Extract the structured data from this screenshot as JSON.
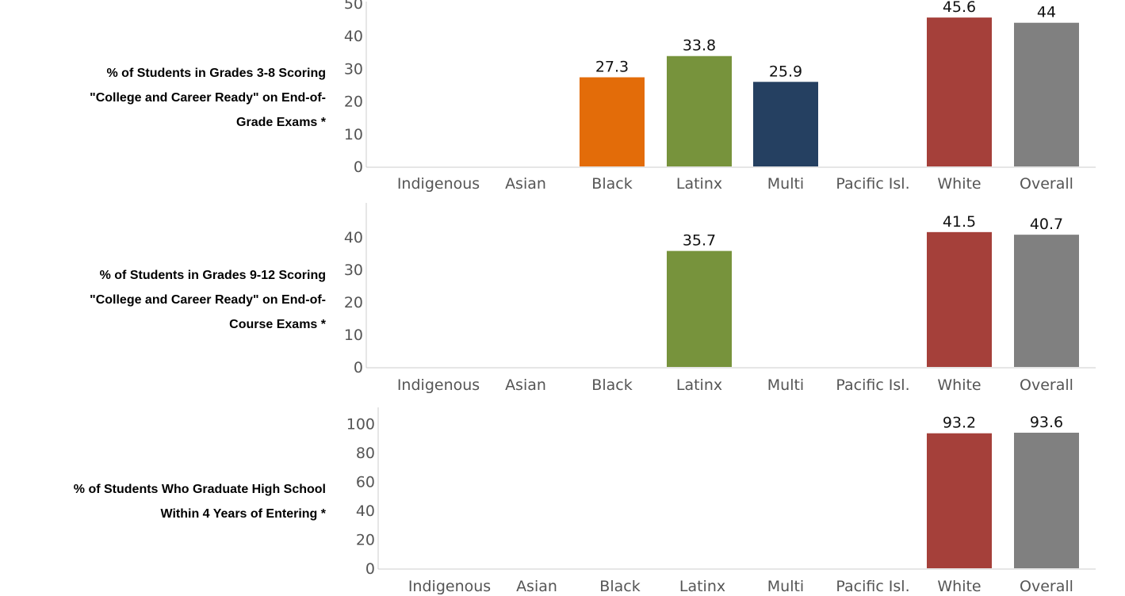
{
  "colors": {
    "Indigenous": "#7f7f7f",
    "Asian": "#7f7f7f",
    "Black": "#e36c09",
    "Latinx": "#77933c",
    "Multi": "#254061",
    "Pacific Isl.": "#7f7f7f",
    "White": "#a5403a",
    "Overall": "#808080",
    "axis": "#cccccc"
  },
  "chart_data": [
    {
      "type": "bar",
      "label_lines": [
        "% of Students in Grades 3-8 Scoring ",
        "\"College and Career Ready\" on End-of-",
        "Grade Exams *"
      ],
      "categories": [
        "Indigenous",
        "Asian",
        "Black",
        "Latinx",
        "Multi",
        "Pacific Isl.",
        "White",
        "Overall"
      ],
      "values": [
        null,
        null,
        27.3,
        33.8,
        25.9,
        null,
        45.6,
        44
      ],
      "value_labels": [
        "",
        "",
        "27.3",
        "33.8",
        "25.9",
        "",
        "45.6",
        "44"
      ],
      "ylim": [
        0,
        50
      ],
      "yticks": [
        0,
        10,
        20,
        30,
        40,
        50
      ]
    },
    {
      "type": "bar",
      "label_lines": [
        "% of Students in Grades 9-12 Scoring ",
        "\"College and Career Ready\" on End-of-",
        "Course Exams *"
      ],
      "categories": [
        "Indigenous",
        "Asian",
        "Black",
        "Latinx",
        "Multi",
        "Pacific Isl.",
        "White",
        "Overall"
      ],
      "values": [
        null,
        null,
        null,
        35.7,
        null,
        null,
        41.5,
        40.7
      ],
      "value_labels": [
        "",
        "",
        "",
        "35.7",
        "",
        "",
        "41.5",
        "40.7"
      ],
      "ylim": [
        0,
        50
      ],
      "yticks": [
        0,
        10,
        20,
        30,
        40
      ]
    },
    {
      "type": "bar",
      "label_lines": [
        "% of Students Who Graduate High School ",
        "Within 4 Years of Entering *"
      ],
      "categories": [
        "Indigenous",
        "Asian",
        "Black",
        "Latinx",
        "Multi",
        "Pacific Isl.",
        "White",
        "Overall"
      ],
      "values": [
        null,
        null,
        null,
        null,
        null,
        null,
        93.2,
        93.6
      ],
      "value_labels": [
        "",
        "",
        "",
        "",
        "",
        "",
        "93.2",
        "93.6"
      ],
      "ylim": [
        0,
        110
      ],
      "yticks": [
        0,
        20,
        40,
        60,
        80,
        100
      ]
    }
  ]
}
